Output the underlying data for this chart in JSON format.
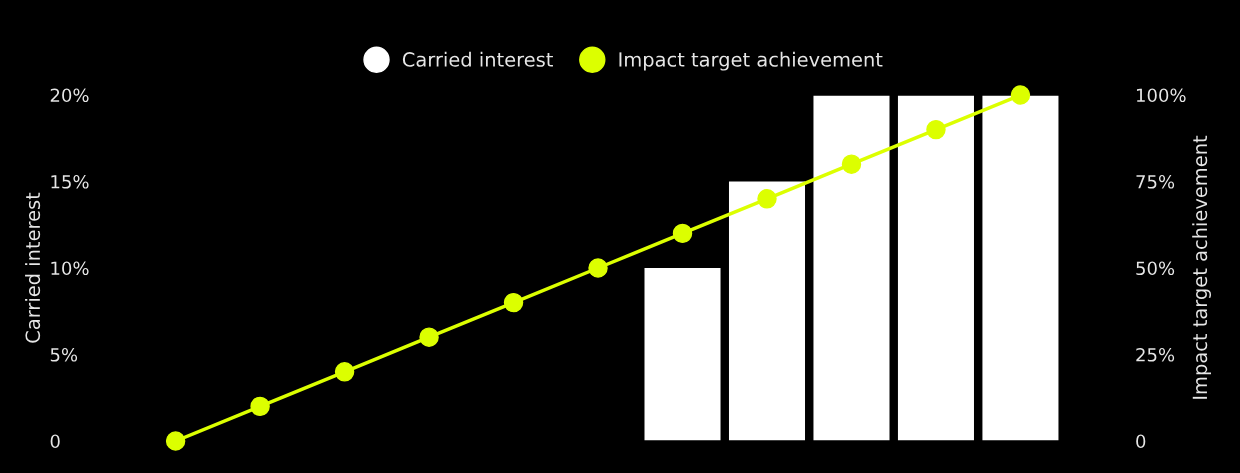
{
  "chart_data": {
    "type": "bar",
    "categories": [
      null,
      null,
      null,
      null,
      null,
      null,
      null,
      null,
      null,
      null,
      null
    ],
    "series": [
      {
        "name": "Carried interest",
        "color": "#ffffff",
        "values": [
          null,
          null,
          null,
          null,
          null,
          null,
          10,
          15,
          20,
          20,
          20
        ]
      },
      {
        "name": "Impact target achievement",
        "type": "line",
        "axis": "y2",
        "color": "#dcff00",
        "values": [
          0,
          10,
          20,
          30,
          40,
          50,
          60,
          70,
          80,
          90,
          100
        ]
      }
    ],
    "ylabel": "Carried interest",
    "y2label": "Impact target achievement",
    "ylim": [
      0,
      20
    ],
    "yticks": [
      {
        "value": 0,
        "label": "0"
      },
      {
        "value": 5,
        "label": "5%"
      },
      {
        "value": 10,
        "label": "10%"
      },
      {
        "value": 15,
        "label": "15%"
      },
      {
        "value": 20,
        "label": "20%"
      }
    ],
    "y2lim": [
      0,
      100
    ],
    "y2ticks": [
      {
        "value": 0,
        "label": "0"
      },
      {
        "value": 25,
        "label": "25%"
      },
      {
        "value": 50,
        "label": "50%"
      },
      {
        "value": 75,
        "label": "75%"
      },
      {
        "value": 100,
        "label": "100%"
      }
    ],
    "marker": "circle",
    "line_style": "solid",
    "legend": "top",
    "grid": false
  }
}
